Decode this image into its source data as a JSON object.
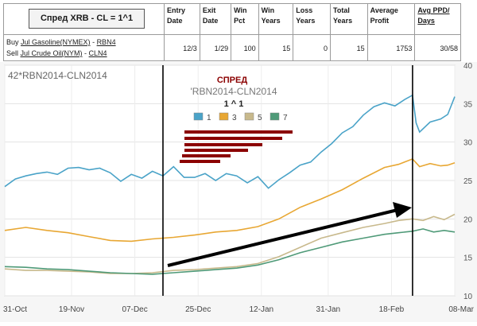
{
  "table": {
    "title": "Спред XRB - CL = 1^1",
    "headers": {
      "entry_date": "Entry Date",
      "exit_date": "Exit Date",
      "win_pct": "Win Pct",
      "win_years": "Win Years",
      "loss_years": "Loss Years",
      "total_years": "Total Years",
      "average_profit": "Average Profit",
      "avg_ppd_days": "Avg PPD/ Days"
    },
    "legs": [
      {
        "action": "Buy",
        "contract": "Jul Gasoline(NYMEX)",
        "sep": " - ",
        "symbol": "RBN4"
      },
      {
        "action": "Sell",
        "contract": "Jul Crude Oil(NYM)",
        "sep": " - ",
        "symbol": "CLN4"
      }
    ],
    "row": {
      "entry_date": "12/3",
      "exit_date": "1/29",
      "win_pct": "100",
      "win_years": "15",
      "loss_years": "0",
      "total_years": "15",
      "average_profit": "1753",
      "avg_ppd_days": "30/58"
    }
  },
  "chart_data": {
    "type": "line",
    "symbol_label": "42*RBN2014-CLN2014",
    "overlay_title_1": "СПРЕД",
    "overlay_title_2": "'RBN2014-CLN2014",
    "overlay_title_3": "1 ^ 1",
    "x_labels": [
      "31-Oct",
      "19-Nov",
      "07-Dec",
      "25-Dec",
      "12-Jan",
      "31-Jan",
      "18-Feb",
      "08-Mar"
    ],
    "y_ticks": [
      10,
      15,
      20,
      25,
      30,
      35,
      40
    ],
    "ylim": [
      10,
      40
    ],
    "xlim": [
      0,
      128
    ],
    "x_tick_positions": [
      0,
      19,
      37,
      55,
      73,
      92,
      110,
      128
    ],
    "vertical_lines": [
      45,
      116
    ],
    "legend_position": "top-center",
    "grid": true,
    "series": [
      {
        "name": "1",
        "color": "#4aa3c8",
        "points": [
          [
            0,
            24.2
          ],
          [
            3,
            25.2
          ],
          [
            6,
            25.6
          ],
          [
            9,
            25.9
          ],
          [
            12,
            26.1
          ],
          [
            15,
            25.8
          ],
          [
            18,
            26.6
          ],
          [
            21,
            26.7
          ],
          [
            24,
            26.4
          ],
          [
            27,
            26.6
          ],
          [
            30,
            26.0
          ],
          [
            33,
            24.9
          ],
          [
            36,
            25.8
          ],
          [
            39,
            25.3
          ],
          [
            42,
            26.2
          ],
          [
            45,
            25.6
          ],
          [
            48,
            26.8
          ],
          [
            51,
            25.4
          ],
          [
            54,
            25.4
          ],
          [
            57,
            25.9
          ],
          [
            60,
            25.0
          ],
          [
            63,
            25.9
          ],
          [
            66,
            25.6
          ],
          [
            69,
            24.7
          ],
          [
            72,
            25.5
          ],
          [
            75,
            24.0
          ],
          [
            78,
            25.1
          ],
          [
            81,
            26.0
          ],
          [
            84,
            27.0
          ],
          [
            87,
            27.4
          ],
          [
            90,
            28.7
          ],
          [
            93,
            29.8
          ],
          [
            96,
            31.2
          ],
          [
            99,
            32.0
          ],
          [
            102,
            33.5
          ],
          [
            105,
            34.6
          ],
          [
            108,
            35.1
          ],
          [
            111,
            34.7
          ],
          [
            114,
            35.6
          ],
          [
            116,
            36.1
          ],
          [
            117,
            32.5
          ],
          [
            118,
            31.3
          ],
          [
            121,
            32.6
          ],
          [
            124,
            33.0
          ],
          [
            126,
            33.6
          ],
          [
            128,
            35.9
          ]
        ]
      },
      {
        "name": "3",
        "color": "#e8a733",
        "points": [
          [
            0,
            18.5
          ],
          [
            6,
            18.9
          ],
          [
            12,
            18.5
          ],
          [
            18,
            18.2
          ],
          [
            24,
            17.7
          ],
          [
            30,
            17.2
          ],
          [
            36,
            17.1
          ],
          [
            42,
            17.4
          ],
          [
            48,
            17.6
          ],
          [
            54,
            17.9
          ],
          [
            60,
            18.3
          ],
          [
            66,
            18.5
          ],
          [
            72,
            19.0
          ],
          [
            78,
            20.0
          ],
          [
            84,
            21.5
          ],
          [
            90,
            22.6
          ],
          [
            96,
            23.8
          ],
          [
            102,
            25.3
          ],
          [
            108,
            26.7
          ],
          [
            112,
            27.1
          ],
          [
            116,
            27.8
          ],
          [
            118,
            26.8
          ],
          [
            121,
            27.2
          ],
          [
            124,
            26.9
          ],
          [
            126,
            27.0
          ],
          [
            128,
            27.3
          ]
        ]
      },
      {
        "name": "5",
        "color": "#c8b98c",
        "points": [
          [
            0,
            13.5
          ],
          [
            6,
            13.3
          ],
          [
            12,
            13.3
          ],
          [
            18,
            13.2
          ],
          [
            24,
            13.1
          ],
          [
            30,
            12.9
          ],
          [
            36,
            12.9
          ],
          [
            42,
            13.0
          ],
          [
            48,
            13.3
          ],
          [
            54,
            13.4
          ],
          [
            60,
            13.6
          ],
          [
            66,
            13.8
          ],
          [
            72,
            14.2
          ],
          [
            78,
            15.1
          ],
          [
            84,
            16.3
          ],
          [
            90,
            17.5
          ],
          [
            96,
            18.2
          ],
          [
            102,
            18.9
          ],
          [
            108,
            19.4
          ],
          [
            112,
            19.8
          ],
          [
            116,
            20.0
          ],
          [
            119,
            19.8
          ],
          [
            122,
            20.3
          ],
          [
            125,
            19.9
          ],
          [
            128,
            20.6
          ]
        ]
      },
      {
        "name": "7",
        "color": "#4f9a78",
        "points": [
          [
            0,
            13.8
          ],
          [
            6,
            13.7
          ],
          [
            12,
            13.5
          ],
          [
            18,
            13.4
          ],
          [
            24,
            13.2
          ],
          [
            30,
            13.0
          ],
          [
            36,
            12.9
          ],
          [
            42,
            12.8
          ],
          [
            48,
            13.0
          ],
          [
            54,
            13.2
          ],
          [
            60,
            13.4
          ],
          [
            66,
            13.6
          ],
          [
            72,
            14.0
          ],
          [
            78,
            14.7
          ],
          [
            84,
            15.6
          ],
          [
            90,
            16.3
          ],
          [
            96,
            17.0
          ],
          [
            102,
            17.5
          ],
          [
            108,
            18.0
          ],
          [
            112,
            18.2
          ],
          [
            116,
            18.4
          ],
          [
            119,
            18.7
          ],
          [
            122,
            18.3
          ],
          [
            125,
            18.5
          ],
          [
            128,
            18.3
          ]
        ]
      }
    ]
  }
}
